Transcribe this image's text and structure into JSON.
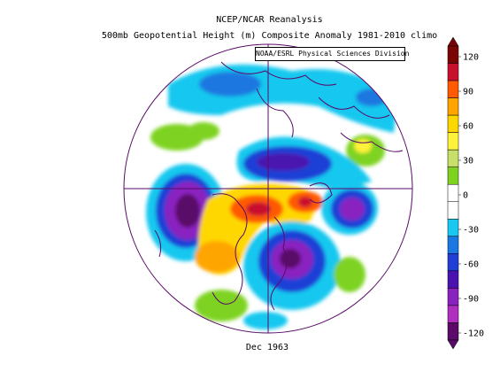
{
  "title_line1": "NCEP/NCAR Reanalysis",
  "title_line2": "500mb Geopotential Height (m) Composite Anomaly 1981-2010 climo",
  "credit": "NOAA/ESRL Physical Sciences Division",
  "date_label": "Dec 1963",
  "colorbar": {
    "ticks": [
      "120",
      "90",
      "60",
      "30",
      "0",
      "-30",
      "-60",
      "-90",
      "-120"
    ],
    "colors": [
      "#7a0403",
      "#c8102e",
      "#ff5a00",
      "#ffa500",
      "#ffd700",
      "#fff23a",
      "#c8e06a",
      "#7ed321",
      "#ffffff",
      "#ffffff",
      "#18c8ef",
      "#1a78e0",
      "#1f3fd6",
      "#4a12b0",
      "#8a22c0",
      "#b02ec0",
      "#5a0a68"
    ]
  }
}
